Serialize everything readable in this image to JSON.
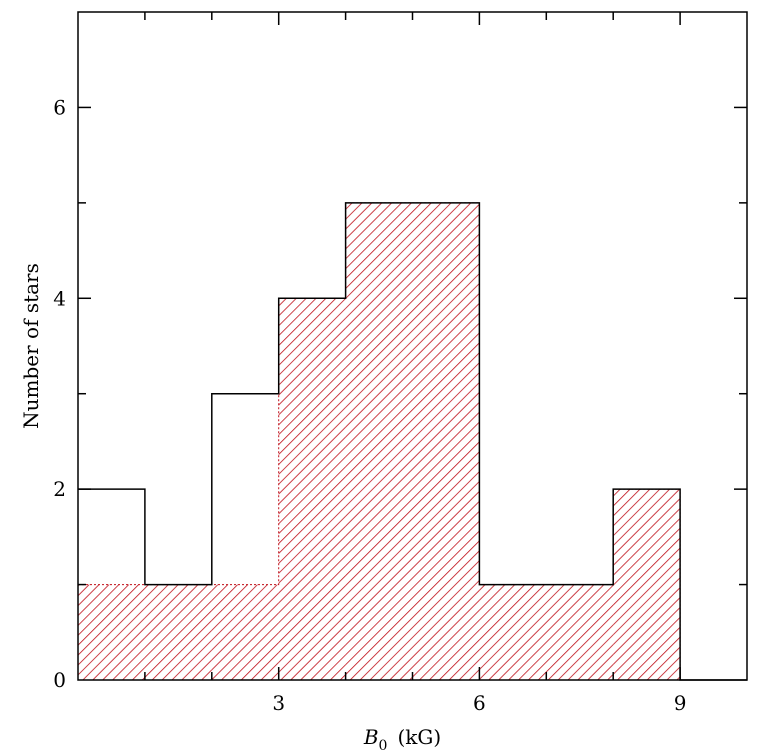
{
  "chart_data": {
    "type": "bar",
    "xlabel": "B",
    "xlabel_sub": "0",
    "xlabel_unit": "(kG)",
    "ylabel": "Number of stars",
    "xlim": [
      0,
      10
    ],
    "ylim": [
      0,
      7
    ],
    "x_ticks": [
      3,
      6,
      9
    ],
    "y_ticks": [
      0,
      2,
      4,
      6
    ],
    "bin_edges": [
      0,
      1,
      2,
      3,
      4,
      6,
      8,
      9,
      10
    ],
    "series": [
      {
        "style": "outline",
        "color": "#000000",
        "values": [
          2,
          1,
          3,
          4,
          5,
          1,
          2,
          0
        ]
      },
      {
        "style": "hatched",
        "color": "#c0101a",
        "values": [
          1,
          1,
          1,
          4,
          5,
          1,
          2,
          0
        ]
      }
    ],
    "grid": false
  }
}
